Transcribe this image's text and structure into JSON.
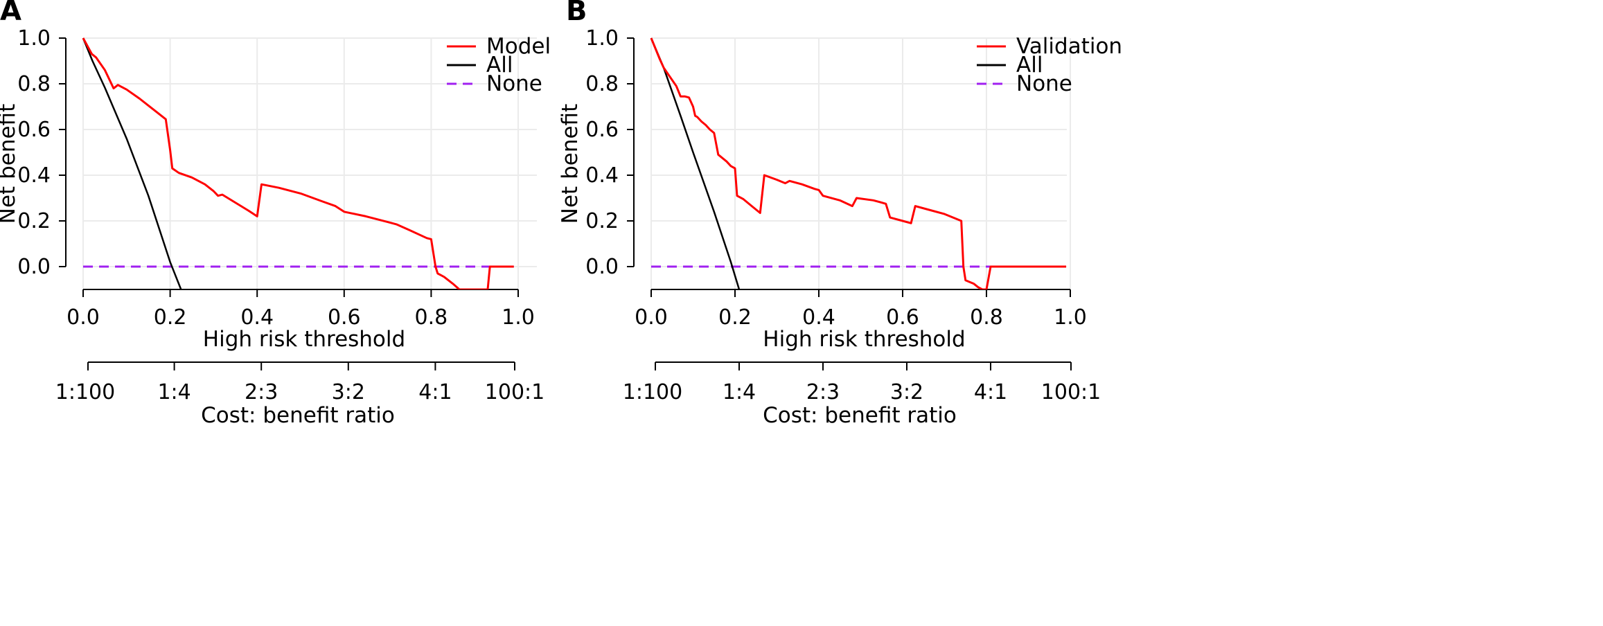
{
  "chart_data": [
    {
      "type": "line",
      "panel_label": "A",
      "xlabel": "High risk threshold",
      "ylabel": "Net benefit",
      "secondary_axis_label": "Cost: benefit ratio",
      "xlim": [
        0,
        1
      ],
      "ylim": [
        -0.1,
        1.0
      ],
      "x_ticks": [
        "0.0",
        "0.2",
        "0.4",
        "0.6",
        "0.8",
        "1.0"
      ],
      "x_tick_values": [
        0,
        0.2,
        0.4,
        0.6,
        0.8,
        1.0
      ],
      "y_ticks": [
        "0.0",
        "0.2",
        "0.4",
        "0.6",
        "0.8",
        "1.0"
      ],
      "y_tick_values": [
        0,
        0.2,
        0.4,
        0.6,
        0.8,
        1.0
      ],
      "cost_benefit_ticks": [
        "1:100",
        "1:4",
        "2:3",
        "3:2",
        "4:1",
        "100:1"
      ],
      "cost_benefit_tick_values": [
        0.0099,
        0.2,
        0.4,
        0.6,
        0.8,
        0.9901
      ],
      "grid": true,
      "legend_position": "top-right",
      "series": [
        {
          "name": "Model",
          "color": "#ff0000",
          "style": "solid",
          "points": [
            [
              0,
              1.0
            ],
            [
              0.02,
              0.93
            ],
            [
              0.03,
              0.915
            ],
            [
              0.05,
              0.86
            ],
            [
              0.07,
              0.78
            ],
            [
              0.08,
              0.795
            ],
            [
              0.1,
              0.775
            ],
            [
              0.13,
              0.735
            ],
            [
              0.15,
              0.705
            ],
            [
              0.17,
              0.675
            ],
            [
              0.19,
              0.645
            ],
            [
              0.2,
              0.51
            ],
            [
              0.205,
              0.43
            ],
            [
              0.22,
              0.41
            ],
            [
              0.25,
              0.39
            ],
            [
              0.28,
              0.36
            ],
            [
              0.3,
              0.33
            ],
            [
              0.31,
              0.31
            ],
            [
              0.32,
              0.315
            ],
            [
              0.35,
              0.28
            ],
            [
              0.38,
              0.245
            ],
            [
              0.4,
              0.22
            ],
            [
              0.41,
              0.36
            ],
            [
              0.45,
              0.345
            ],
            [
              0.5,
              0.32
            ],
            [
              0.55,
              0.285
            ],
            [
              0.58,
              0.265
            ],
            [
              0.6,
              0.24
            ],
            [
              0.65,
              0.22
            ],
            [
              0.7,
              0.195
            ],
            [
              0.72,
              0.185
            ],
            [
              0.75,
              0.16
            ],
            [
              0.79,
              0.125
            ],
            [
              0.8,
              0.12
            ],
            [
              0.81,
              0.0
            ],
            [
              0.815,
              -0.03
            ],
            [
              0.83,
              -0.045
            ],
            [
              0.85,
              -0.075
            ],
            [
              0.865,
              -0.1
            ],
            [
              0.93,
              -0.1
            ],
            [
              0.935,
              0.0
            ],
            [
              0.99,
              0.0
            ]
          ]
        },
        {
          "name": "All",
          "color": "#000000",
          "style": "solid",
          "points": [
            [
              0.0,
              1.0
            ],
            [
              0.0215,
              0.9
            ],
            [
              0.05,
              0.783
            ],
            [
              0.1,
              0.56
            ],
            [
              0.15,
              0.31
            ],
            [
              0.2,
              0.02
            ],
            [
              0.225,
              -0.1
            ]
          ]
        },
        {
          "name": "None",
          "color": "#a020f0",
          "style": "dashed",
          "points": [
            [
              0.0,
              0.0
            ],
            [
              0.99,
              0.0
            ]
          ]
        }
      ]
    },
    {
      "type": "line",
      "panel_label": "B",
      "xlabel": "High risk threshold",
      "ylabel": "Net benefit",
      "secondary_axis_label": "Cost: benefit ratio",
      "xlim": [
        0,
        1
      ],
      "ylim": [
        -0.1,
        1.0
      ],
      "x_ticks": [
        "0.0",
        "0.2",
        "0.4",
        "0.6",
        "0.8",
        "1.0"
      ],
      "x_tick_values": [
        0,
        0.2,
        0.4,
        0.6,
        0.8,
        1.0
      ],
      "y_ticks": [
        "0.0",
        "0.2",
        "0.4",
        "0.6",
        "0.8",
        "1.0"
      ],
      "y_tick_values": [
        0,
        0.2,
        0.4,
        0.6,
        0.8,
        1.0
      ],
      "cost_benefit_ticks": [
        "1:100",
        "1:4",
        "2:3",
        "3:2",
        "4:1",
        "100:1"
      ],
      "cost_benefit_tick_values": [
        0.0099,
        0.2,
        0.4,
        0.6,
        0.8,
        0.9901
      ],
      "grid": true,
      "legend_position": "top-right",
      "series": [
        {
          "name": "Validation",
          "color": "#ff0000",
          "style": "solid",
          "points": [
            [
              0,
              1.0
            ],
            [
              0.02,
              0.91
            ],
            [
              0.03,
              0.87
            ],
            [
              0.045,
              0.83
            ],
            [
              0.06,
              0.79
            ],
            [
              0.07,
              0.745
            ],
            [
              0.08,
              0.745
            ],
            [
              0.09,
              0.74
            ],
            [
              0.1,
              0.7
            ],
            [
              0.105,
              0.66
            ],
            [
              0.11,
              0.655
            ],
            [
              0.12,
              0.635
            ],
            [
              0.13,
              0.62
            ],
            [
              0.14,
              0.6
            ],
            [
              0.15,
              0.585
            ],
            [
              0.16,
              0.49
            ],
            [
              0.18,
              0.46
            ],
            [
              0.19,
              0.44
            ],
            [
              0.2,
              0.43
            ],
            [
              0.205,
              0.31
            ],
            [
              0.22,
              0.295
            ],
            [
              0.24,
              0.265
            ],
            [
              0.26,
              0.235
            ],
            [
              0.27,
              0.4
            ],
            [
              0.3,
              0.38
            ],
            [
              0.32,
              0.365
            ],
            [
              0.33,
              0.375
            ],
            [
              0.36,
              0.36
            ],
            [
              0.39,
              0.34
            ],
            [
              0.4,
              0.335
            ],
            [
              0.41,
              0.31
            ],
            [
              0.45,
              0.29
            ],
            [
              0.48,
              0.265
            ],
            [
              0.49,
              0.3
            ],
            [
              0.53,
              0.29
            ],
            [
              0.55,
              0.28
            ],
            [
              0.56,
              0.275
            ],
            [
              0.57,
              0.215
            ],
            [
              0.6,
              0.2
            ],
            [
              0.62,
              0.19
            ],
            [
              0.63,
              0.265
            ],
            [
              0.66,
              0.25
            ],
            [
              0.7,
              0.23
            ],
            [
              0.74,
              0.2
            ],
            [
              0.745,
              0.0
            ],
            [
              0.75,
              -0.06
            ],
            [
              0.77,
              -0.075
            ],
            [
              0.78,
              -0.09
            ],
            [
              0.79,
              -0.1
            ],
            [
              0.8,
              -0.1
            ],
            [
              0.81,
              0.0
            ],
            [
              0.99,
              0.0
            ]
          ]
        },
        {
          "name": "All",
          "color": "#000000",
          "style": "solid",
          "points": [
            [
              0.0,
              1.0
            ],
            [
              0.03,
              0.87
            ],
            [
              0.07,
              0.66
            ],
            [
              0.1,
              0.5
            ],
            [
              0.15,
              0.24
            ],
            [
              0.19,
              0.02
            ],
            [
              0.21,
              -0.1
            ]
          ]
        },
        {
          "name": "None",
          "color": "#a020f0",
          "style": "dashed",
          "points": [
            [
              0.0,
              0.0
            ],
            [
              0.99,
              0.0
            ]
          ]
        }
      ]
    }
  ]
}
